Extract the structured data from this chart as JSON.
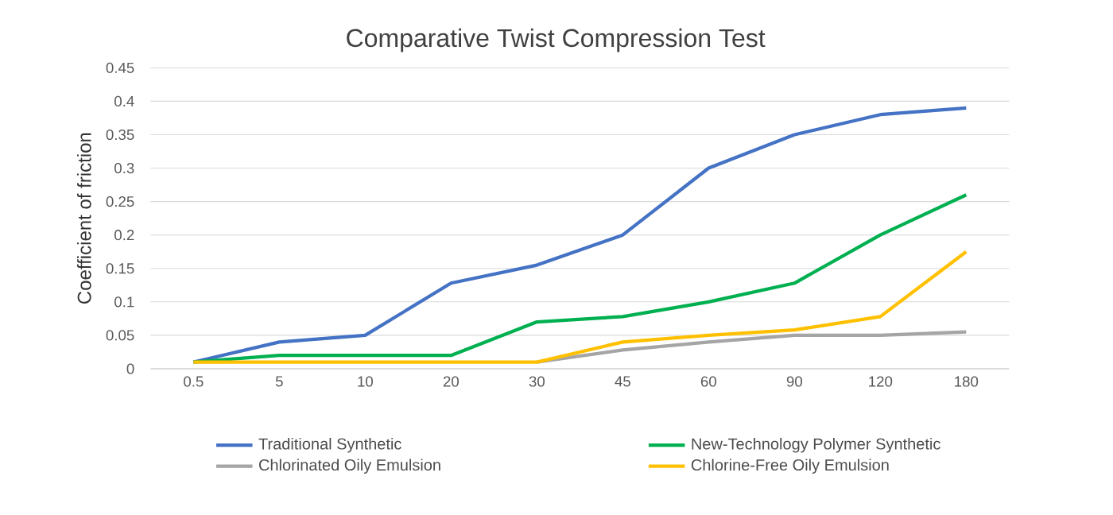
{
  "chart_data": {
    "type": "line",
    "title": "Comparative Twist Compression  Test",
    "ylabel": "Coefficient of friction",
    "categories": [
      "0.5",
      "5",
      "10",
      "20",
      "30",
      "45",
      "60",
      "90",
      "120",
      "180"
    ],
    "series": [
      {
        "name": "Traditional Synthetic",
        "color": "#4472c4",
        "values": [
          0.01,
          0.04,
          0.05,
          0.128,
          0.155,
          0.2,
          0.3,
          0.35,
          0.38,
          0.39
        ]
      },
      {
        "name": "New-Technology Polymer Synthetic",
        "color": "#00b050",
        "values": [
          0.01,
          0.02,
          0.02,
          0.02,
          0.07,
          0.078,
          0.1,
          0.128,
          0.2,
          0.26
        ]
      },
      {
        "name": "Chlorinated Oily Emulsion",
        "color": "#a5a5a5",
        "values": [
          null,
          null,
          null,
          null,
          0.01,
          0.028,
          0.04,
          0.05,
          0.05,
          0.055
        ]
      },
      {
        "name": "Chlorine-Free Oily Emulsion",
        "color": "#ffc000",
        "values": [
          0.01,
          0.01,
          0.01,
          0.01,
          0.01,
          0.04,
          0.05,
          0.058,
          0.078,
          0.175
        ]
      }
    ],
    "ylim": [
      0,
      0.45
    ],
    "yticks": [
      0,
      0.05,
      0.1,
      0.15,
      0.2,
      0.25,
      0.3,
      0.35,
      0.4,
      0.45
    ],
    "grid": "y",
    "legend": "bottom",
    "marker": "none",
    "line_style": "solid"
  }
}
